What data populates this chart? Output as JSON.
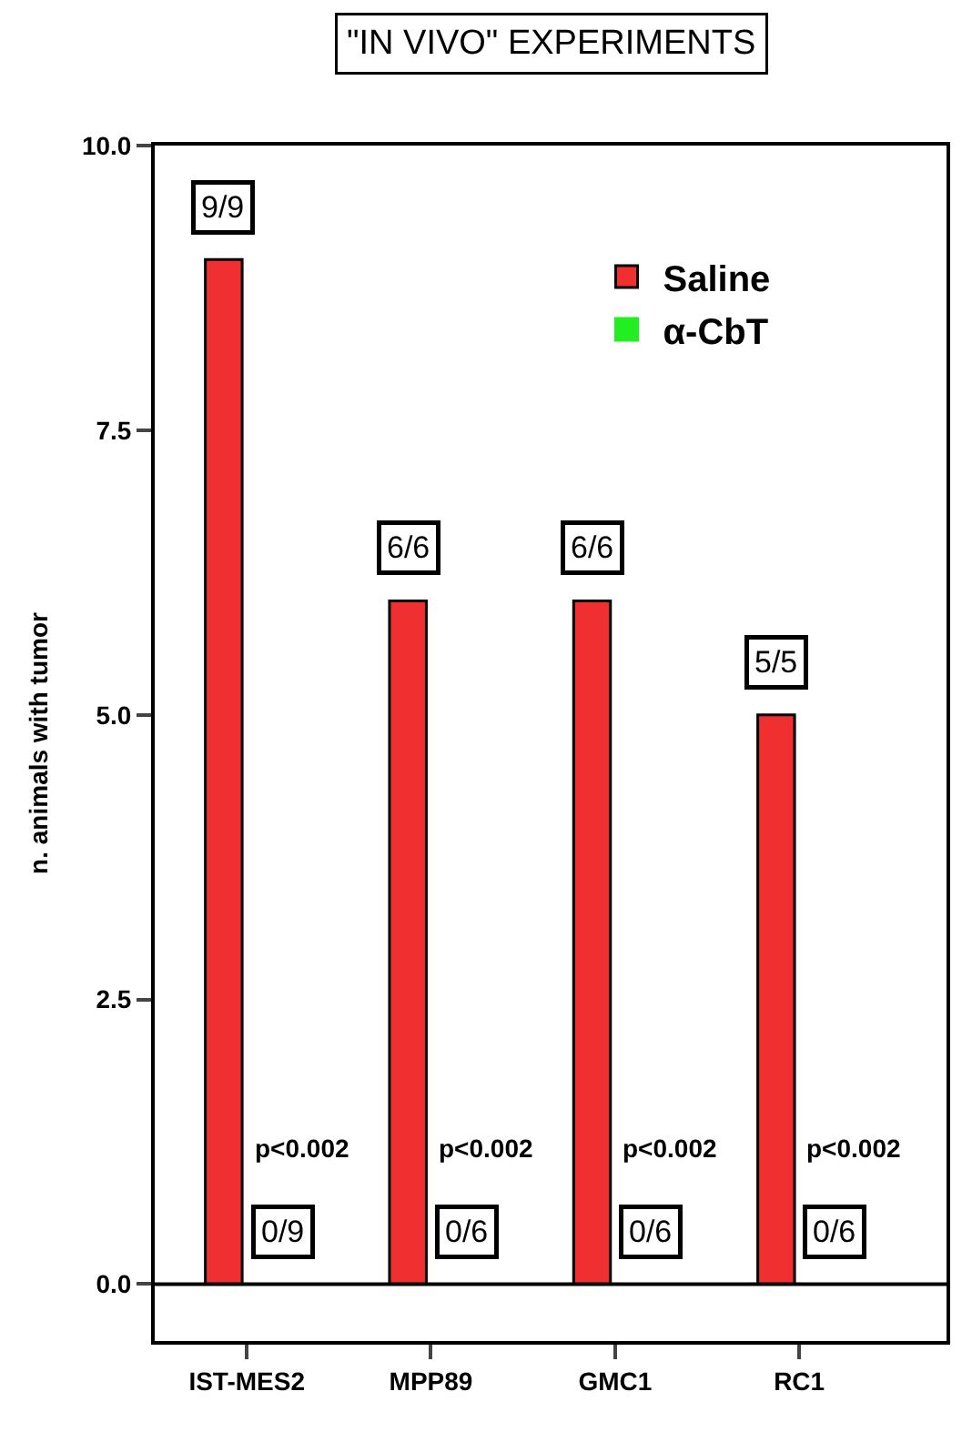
{
  "chart_data": {
    "type": "bar",
    "title": "\"IN VIVO\" EXPERIMENTS",
    "ylabel": "n. animals with tumor",
    "categories": [
      "IST-MES2",
      "MPP89",
      "GMC1",
      "RC1"
    ],
    "series": [
      {
        "name": "Saline",
        "color": "#f03030",
        "values": [
          9,
          6,
          6,
          5
        ]
      },
      {
        "name": "α-CbT",
        "color": "#22ee22",
        "values": [
          0,
          0,
          0,
          0
        ]
      }
    ],
    "annotations": [
      {
        "text": "9/9",
        "x": "IST-MES2",
        "y": 9
      },
      {
        "text": "6/6",
        "x": "MPP89",
        "y": 6
      },
      {
        "text": "6/6",
        "x": "GMC1",
        "y": 6
      },
      {
        "text": "5/5",
        "x": "RC1",
        "y": 5
      },
      {
        "text": "0/9",
        "x": "IST-MES2",
        "y": 0
      },
      {
        "text": "0/6",
        "x": "MPP89",
        "y": 0
      },
      {
        "text": "0/6",
        "x": "GMC1",
        "y": 0
      },
      {
        "text": "0/6",
        "x": "RC1",
        "y": 0
      },
      {
        "text": "p<0.002",
        "x": "IST-MES2",
        "y": 1.2
      },
      {
        "text": "p<0.002",
        "x": "MPP89",
        "y": 1.2
      },
      {
        "text": "p<0.002",
        "x": "GMC1",
        "y": 1.2
      },
      {
        "text": "p<0.002",
        "x": "RC1",
        "y": 1.2
      }
    ],
    "ref_lines": [
      {
        "axis": "y",
        "value": 0,
        "color": "#000000"
      }
    ],
    "ylim": [
      -0.5,
      10
    ],
    "yticks": [
      {
        "value": 0,
        "label": "0.0"
      },
      2.5,
      {
        "value": 5,
        "label": "5.0"
      },
      7.5,
      {
        "value": 10,
        "label": "10.0"
      }
    ],
    "legend": "top right"
  }
}
